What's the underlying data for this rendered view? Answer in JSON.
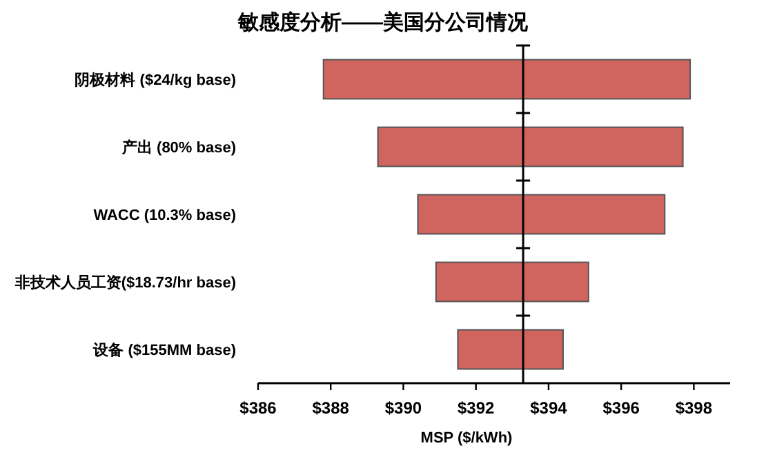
{
  "chart_data": {
    "type": "bar",
    "orientation": "horizontal",
    "title": "敏感度分析——美国分公司情况",
    "xlabel": "MSP ($/kWh)",
    "categories": [
      "阴极材料 ($24/kg base)",
      "产出 (80% base)",
      "WACC (10.3% base)",
      "非技术人员工资($18.73/hr base)",
      "设备 ($155MM base)"
    ],
    "base": [
      387.8,
      389.3,
      390.4,
      390.9,
      391.5
    ],
    "values": [
      10.1,
      8.4,
      6.8,
      4.2,
      2.9
    ],
    "color": "#d0645f",
    "xlim": [
      386,
      399
    ],
    "xticks": [
      {
        "value": 386,
        "label": "$386"
      },
      {
        "value": 388,
        "label": "$388"
      },
      {
        "value": 390,
        "label": "$390"
      },
      {
        "value": 392,
        "label": "$392"
      },
      {
        "value": 394,
        "label": "$394"
      },
      {
        "value": 396,
        "label": "$396"
      },
      {
        "value": 398,
        "label": "$398"
      }
    ],
    "ref_lines": [
      {
        "axis": "x",
        "value": 393.3,
        "color": "#000000"
      }
    ],
    "grid": false
  }
}
